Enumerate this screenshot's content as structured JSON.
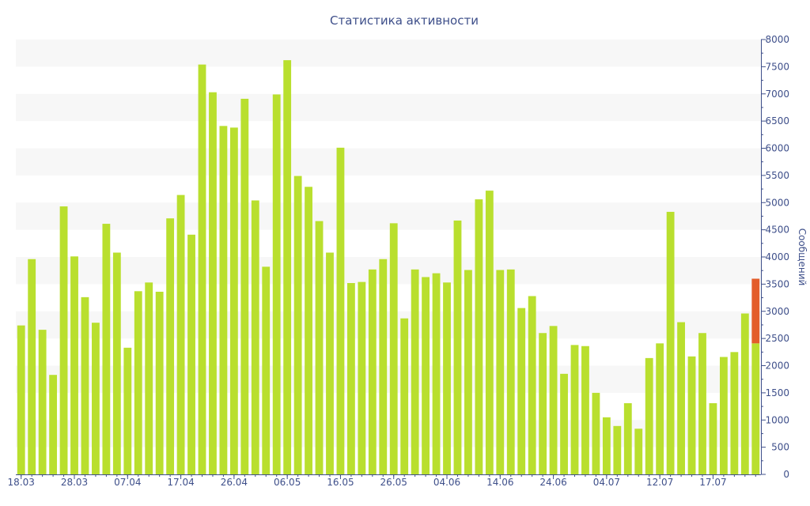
{
  "chart_data": {
    "type": "bar",
    "title": "Статистика активности",
    "xlabel": "",
    "ylabel": "Сообщений",
    "ylim": [
      0,
      8000
    ],
    "y_ticks": [
      0,
      500,
      1000,
      1500,
      2000,
      2500,
      3000,
      3500,
      4000,
      4500,
      5000,
      5500,
      6000,
      6500,
      7000,
      7500,
      8000
    ],
    "x_tick_labels": [
      {
        "index": 0,
        "label": "18.03"
      },
      {
        "index": 5,
        "label": "28.03"
      },
      {
        "index": 10,
        "label": "07.04"
      },
      {
        "index": 15,
        "label": "17.04"
      },
      {
        "index": 20,
        "label": "26.04"
      },
      {
        "index": 25,
        "label": "06.05"
      },
      {
        "index": 30,
        "label": "16.05"
      },
      {
        "index": 35,
        "label": "26.05"
      },
      {
        "index": 40,
        "label": "04.06"
      },
      {
        "index": 45,
        "label": "14.06"
      },
      {
        "index": 50,
        "label": "24.06"
      },
      {
        "index": 55,
        "label": "04.07"
      },
      {
        "index": 60,
        "label": "12.07"
      },
      {
        "index": 65,
        "label": "17.07"
      }
    ],
    "grid": "horizontal bands",
    "colors": {
      "bar": "#b9df2e",
      "highlight": "#e35d2b",
      "band": "#f7f7f7",
      "axis": "#3e4f8a"
    },
    "values": [
      2740,
      3960,
      2660,
      1830,
      4930,
      4010,
      3260,
      2790,
      4610,
      4080,
      2330,
      3370,
      3530,
      3360,
      4710,
      5140,
      4410,
      7540,
      7030,
      6410,
      6380,
      6910,
      5040,
      3820,
      6990,
      7620,
      5490,
      5290,
      4660,
      4080,
      6010,
      3520,
      3540,
      3770,
      3960,
      4620,
      2870,
      3770,
      3630,
      3700,
      3530,
      4670,
      3760,
      5060,
      5220,
      3760,
      3770,
      3060,
      3280,
      2600,
      2730,
      1850,
      2380,
      2360,
      1500,
      1050,
      890,
      1310,
      840,
      2140,
      2410,
      4830,
      2800,
      2170,
      2600,
      1310,
      2160,
      2250,
      2960,
      2410
    ],
    "highlight": {
      "index": 69,
      "from": 2410,
      "to": 3600
    }
  }
}
